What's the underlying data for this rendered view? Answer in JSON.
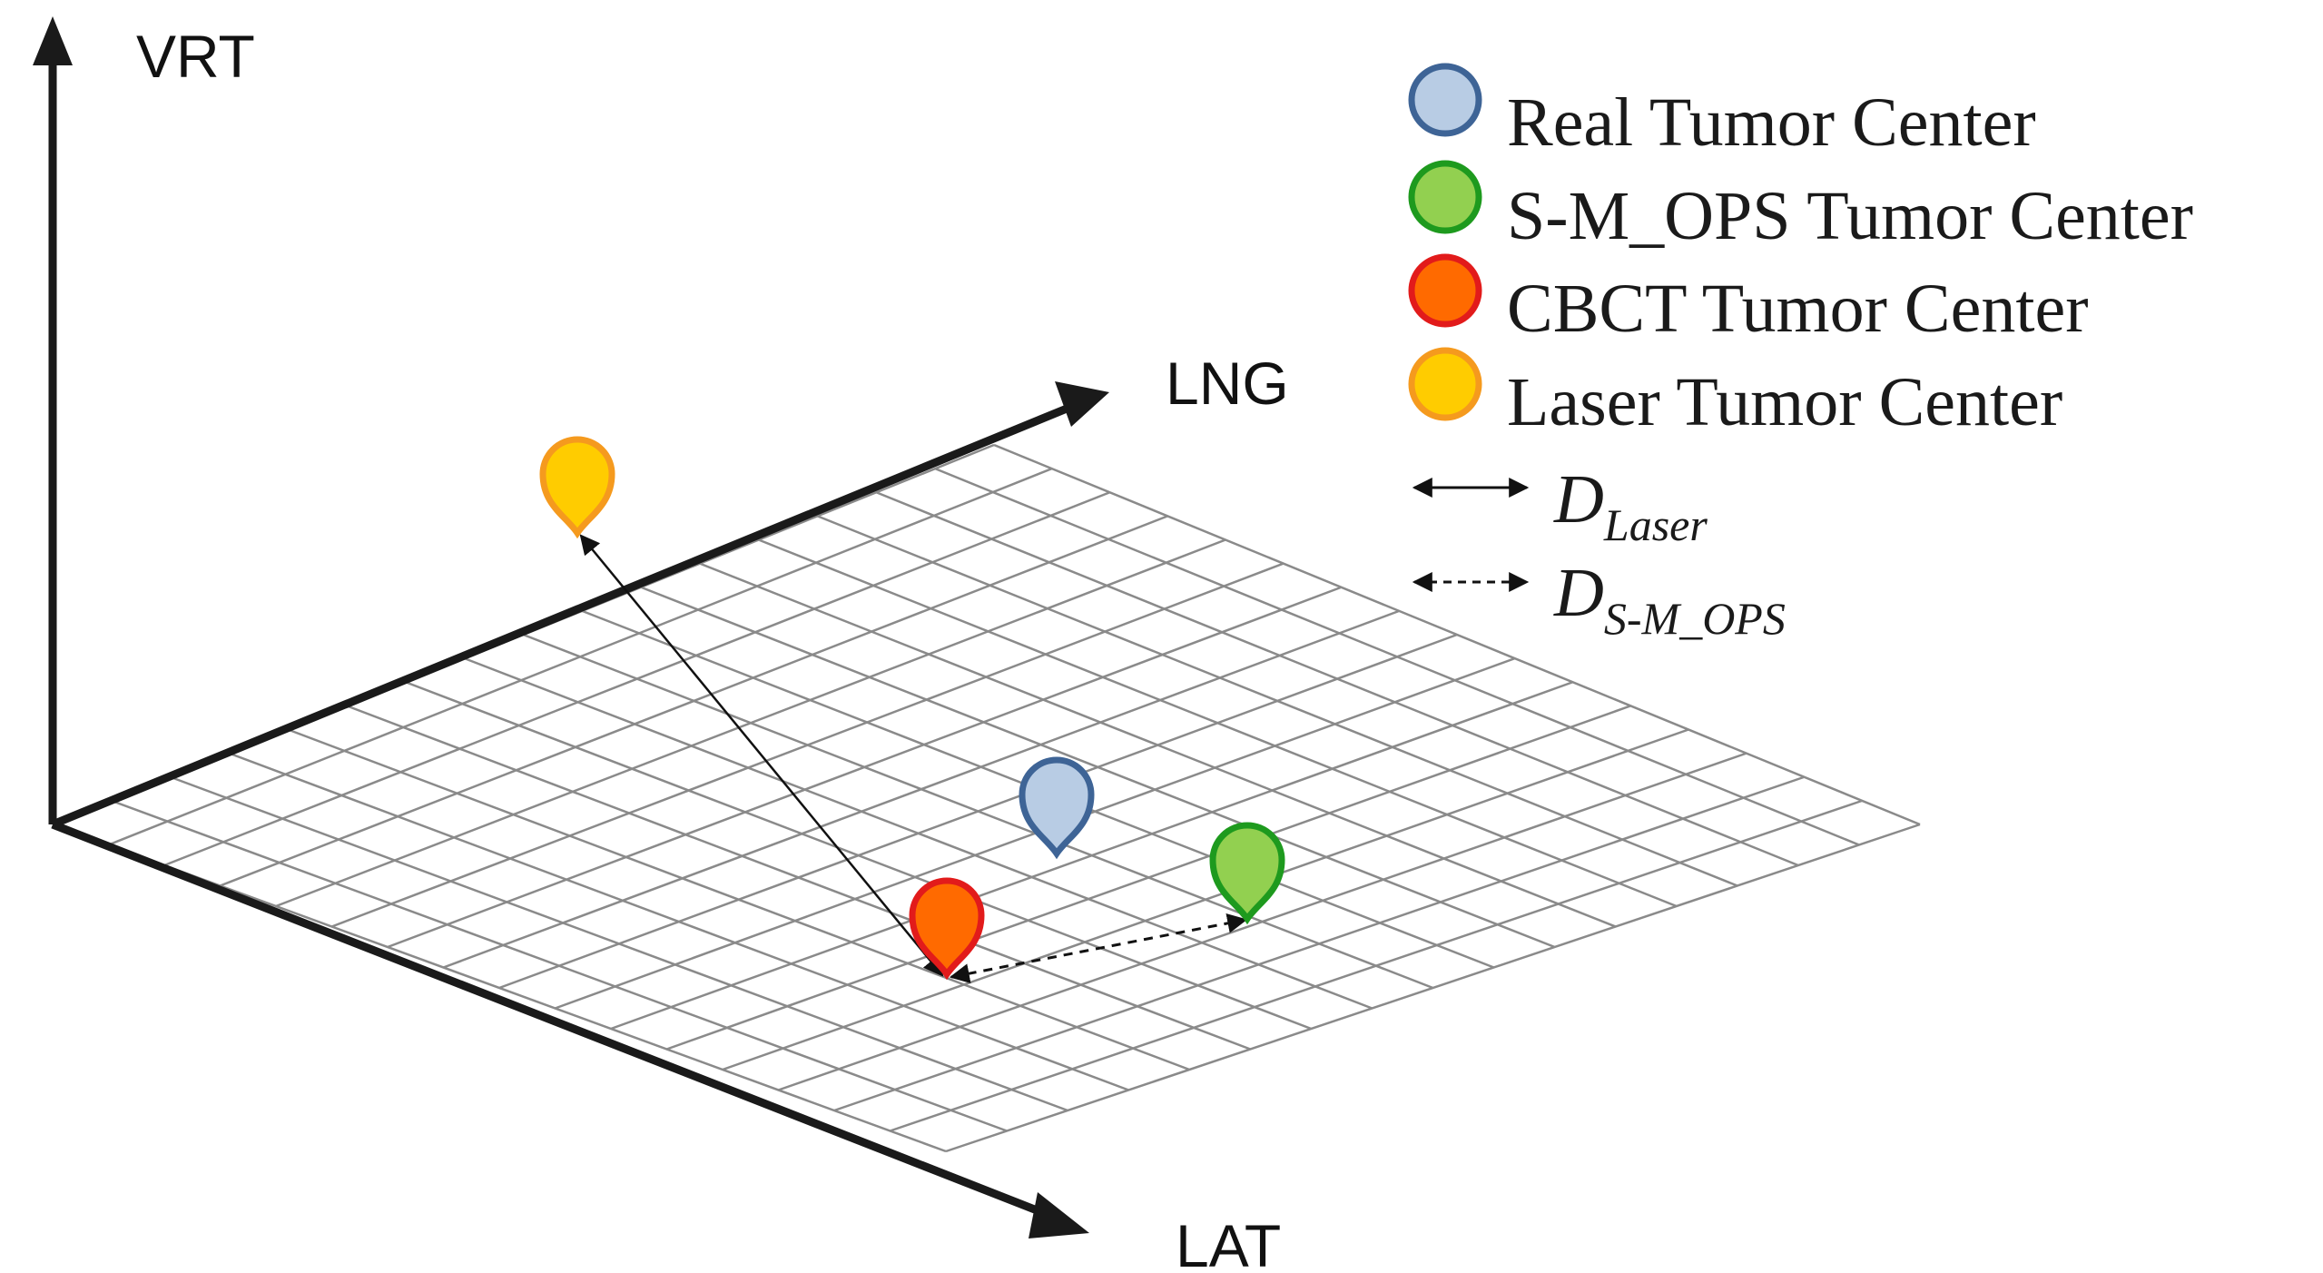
{
  "axes": {
    "vertical": "VRT",
    "longitudinal": "LNG",
    "lateral": "LAT"
  },
  "legend": {
    "markers": [
      {
        "label": "Real Tumor Center",
        "fill": "#b8cce4",
        "stroke": "#3e6496"
      },
      {
        "label": "S-M_OPS Tumor Center",
        "fill": "#92d050",
        "stroke": "#1e9a1e"
      },
      {
        "label": "CBCT Tumor Center",
        "fill": "#ff6a00",
        "stroke": "#e21b1b"
      },
      {
        "label": "Laser Tumor Center",
        "fill": "#ffcc00",
        "stroke": "#f59a1e"
      }
    ],
    "distances": [
      {
        "symbol": "D",
        "subscript": "Laser",
        "line_style": "solid"
      },
      {
        "symbol": "D",
        "subscript": "S-M_OPS",
        "line_style": "dashed"
      }
    ]
  },
  "colors": {
    "axis": "#1a1a1a",
    "grid": "#8a8a8a"
  }
}
